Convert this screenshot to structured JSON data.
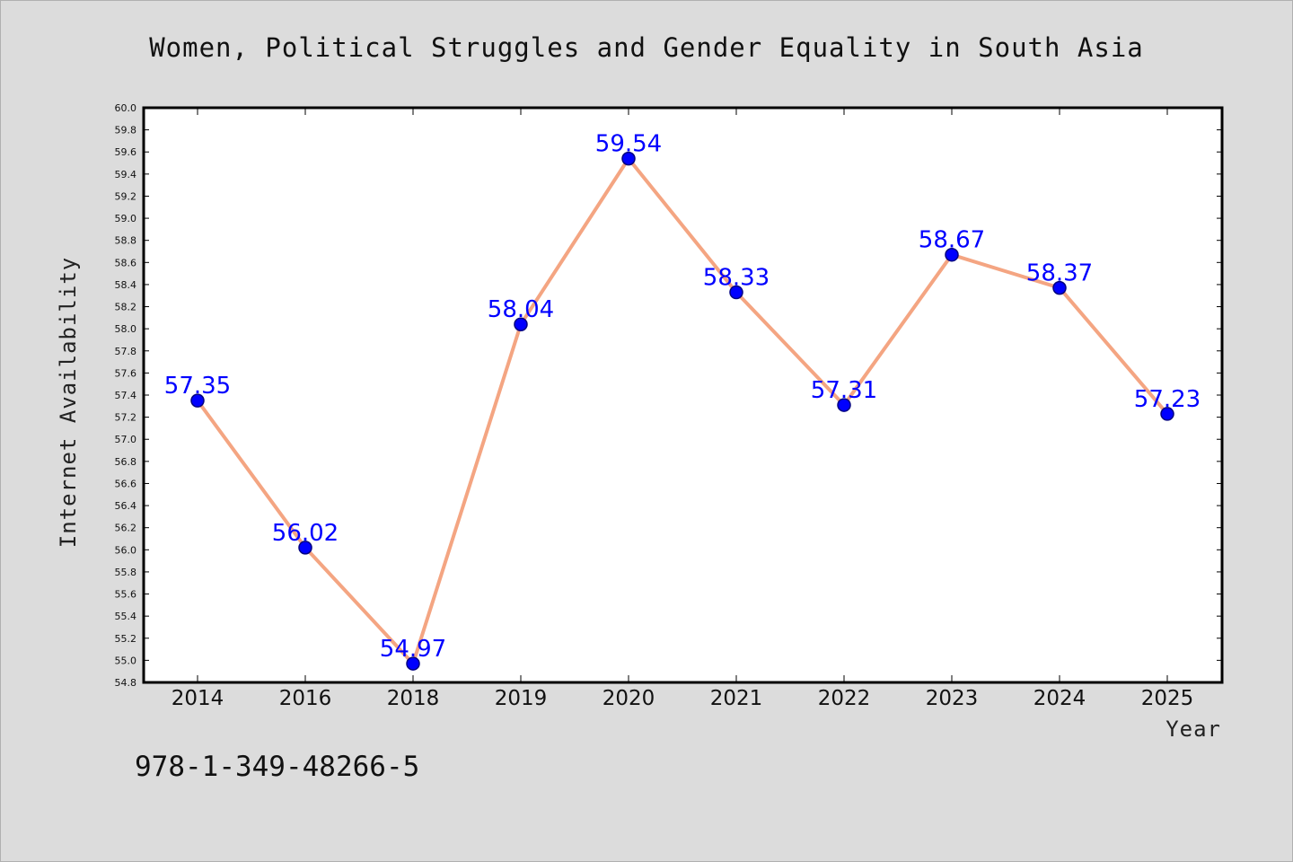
{
  "colors": {
    "background": "#dcdcdc",
    "plot_background": "#ffffff",
    "line": "#f4a582",
    "marker": "#0000ff",
    "marker_edge": "#000080",
    "data_label": "#0000ff"
  },
  "chart_data": {
    "type": "line",
    "title": "Women, Political Struggles and Gender Equality in South Asia",
    "xlabel": "Year",
    "ylabel": "Internet Availability",
    "categories": [
      "2014",
      "2016",
      "2018",
      "2019",
      "2020",
      "2021",
      "2022",
      "2023",
      "2024",
      "2025"
    ],
    "series": [
      {
        "values": [
          57.35,
          56.02,
          54.97,
          58.04,
          59.54,
          58.33,
          57.31,
          58.67,
          58.37,
          57.23
        ],
        "labels": [
          "57.35",
          "56.02",
          "54.97",
          "58.04",
          "59.54",
          "58.33",
          "57.31",
          "58.67",
          "58.37",
          "57.23"
        ]
      }
    ],
    "ylim": [
      54.8,
      60.0
    ],
    "yticks": [
      "54.8",
      "55.0",
      "55.2",
      "55.4",
      "55.6",
      "55.8",
      "56.0",
      "56.2",
      "56.4",
      "56.6",
      "56.8",
      "57.0",
      "57.2",
      "57.4",
      "57.6",
      "57.8",
      "58.0",
      "58.2",
      "58.4",
      "58.6",
      "58.8",
      "59.0",
      "59.2",
      "59.4",
      "59.6",
      "59.8",
      "60.0"
    ],
    "grid": false,
    "legend": "none"
  },
  "footer": {
    "isbn": "978-1-349-48266-5"
  }
}
